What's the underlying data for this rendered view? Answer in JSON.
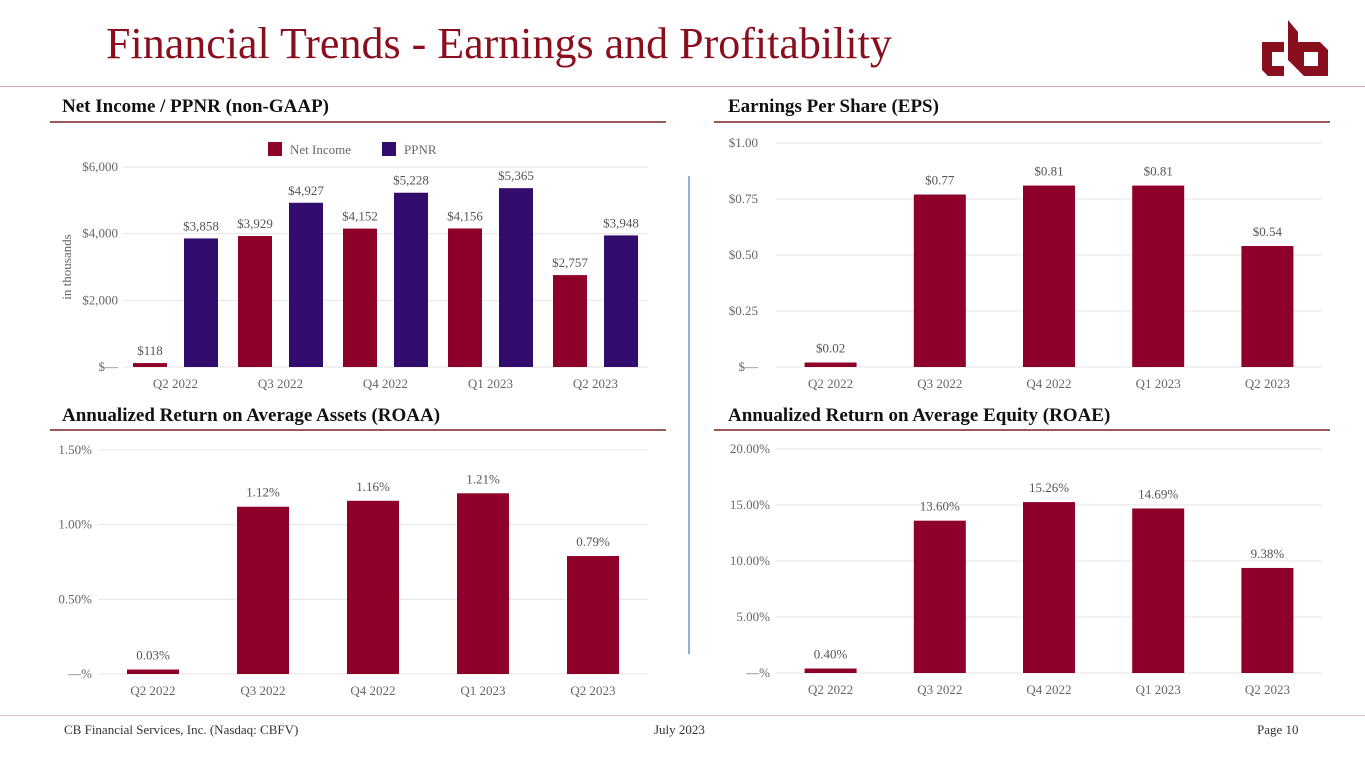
{
  "header": {
    "title": "Financial Trends - Earnings and Profitability",
    "logo_icon": "cb-logo-icon"
  },
  "colors": {
    "brand": "#8a0f1e",
    "net_income": "#8e0029",
    "ppnr": "#330d6d",
    "bar": "#8e0029",
    "grid": "#e4e4e4",
    "tick": "#666666",
    "label": "#555555",
    "divider": "#8fafd6"
  },
  "sections": {
    "net_income": "Net Income / PPNR (non-GAAP)",
    "eps": "Earnings Per Share (EPS)",
    "roaa": "Annualized Return on Average Assets (ROAA)",
    "roae": "Annualized Return on Average Equity (ROAE)"
  },
  "chart_data": [
    {
      "id": "net_income_ppnr",
      "type": "bar",
      "title": "Net Income / PPNR (non-GAAP)",
      "xlabel": "",
      "ylabel": "in thousands",
      "categories": [
        "Q2 2022",
        "Q3 2022",
        "Q4 2022",
        "Q1 2023",
        "Q2 2023"
      ],
      "series": [
        {
          "name": "Net Income",
          "values": [
            118,
            3929,
            4152,
            4156,
            2757
          ],
          "labels": [
            "$118",
            "$3,929",
            "$4,152",
            "$4,156",
            "$2,757"
          ]
        },
        {
          "name": "PPNR",
          "values": [
            3858,
            4927,
            5228,
            5365,
            3948
          ],
          "labels": [
            "$3,858",
            "$4,927",
            "$5,228",
            "$5,365",
            "$3,948"
          ]
        }
      ],
      "ylim": [
        0,
        6000
      ],
      "yticks": [
        0,
        2000,
        4000,
        6000
      ],
      "ytick_labels": [
        "$—",
        "$2,000",
        "$4,000",
        "$6,000"
      ],
      "grid": true,
      "legend": "top-center"
    },
    {
      "id": "eps",
      "type": "bar",
      "title": "Earnings Per Share (EPS)",
      "xlabel": "",
      "ylabel": "",
      "categories": [
        "Q2 2022",
        "Q3 2022",
        "Q4 2022",
        "Q1 2023",
        "Q2 2023"
      ],
      "values": [
        0.02,
        0.77,
        0.81,
        0.81,
        0.54
      ],
      "labels": [
        "$0.02",
        "$0.77",
        "$0.81",
        "$0.81",
        "$0.54"
      ],
      "ylim": [
        0,
        1.0
      ],
      "yticks": [
        0,
        0.25,
        0.5,
        0.75,
        1.0
      ],
      "ytick_labels": [
        "$—",
        "$0.25",
        "$0.50",
        "$0.75",
        "$1.00"
      ],
      "grid": true,
      "legend": "none"
    },
    {
      "id": "roaa",
      "type": "bar",
      "title": "Annualized Return on Average Assets (ROAA)",
      "xlabel": "",
      "ylabel": "",
      "categories": [
        "Q2 2022",
        "Q3 2022",
        "Q4 2022",
        "Q1 2023",
        "Q2 2023"
      ],
      "values": [
        0.03,
        1.12,
        1.16,
        1.21,
        0.79
      ],
      "labels": [
        "0.03%",
        "1.12%",
        "1.16%",
        "1.21%",
        "0.79%"
      ],
      "ylim": [
        0,
        1.5
      ],
      "yticks": [
        0,
        0.5,
        1.0,
        1.5
      ],
      "ytick_labels": [
        "—%",
        "0.50%",
        "1.00%",
        "1.50%"
      ],
      "grid": true,
      "legend": "none"
    },
    {
      "id": "roae",
      "type": "bar",
      "title": "Annualized Return on Average Equity (ROAE)",
      "xlabel": "",
      "ylabel": "",
      "categories": [
        "Q2 2022",
        "Q3 2022",
        "Q4 2022",
        "Q1 2023",
        "Q2 2023"
      ],
      "values": [
        0.4,
        13.6,
        15.26,
        14.69,
        9.38
      ],
      "labels": [
        "0.40%",
        "13.60%",
        "15.26%",
        "14.69%",
        "9.38%"
      ],
      "ylim": [
        0,
        20
      ],
      "yticks": [
        0,
        5,
        10,
        15,
        20
      ],
      "ytick_labels": [
        "—%",
        "5.00%",
        "10.00%",
        "15.00%",
        "20.00%"
      ],
      "grid": true,
      "legend": "none"
    }
  ],
  "footer": {
    "company": "CB Financial Services, Inc. (Nasdaq: CBFV)",
    "date": "July 2023",
    "page": "Page 10"
  }
}
